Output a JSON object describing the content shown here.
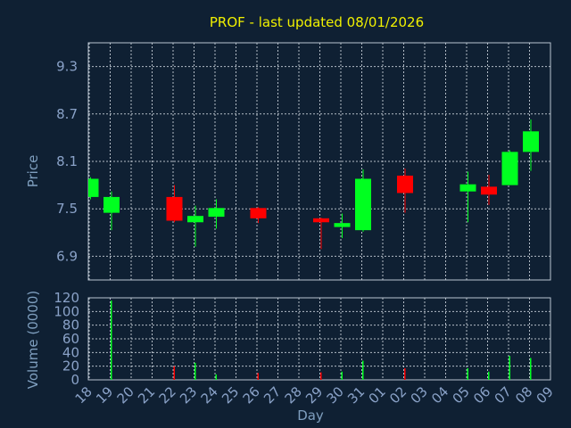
{
  "chart_data": [
    {
      "type": "candlestick",
      "title": "PROF - last updated 08/01/2026",
      "ylabel": "Price",
      "yticks": [
        6.9,
        7.5,
        8.1,
        8.7,
        9.3
      ],
      "ylim": [
        6.6,
        9.6
      ],
      "grid": true,
      "colors": {
        "up": "#00ff20",
        "down": "#ff0000",
        "background": "#0f2033"
      },
      "candles": [
        {
          "day": "18",
          "open": 7.65,
          "close": 7.88,
          "low": 7.62,
          "high": 7.9
        },
        {
          "day": "19",
          "open": 7.45,
          "close": 7.65,
          "low": 7.23,
          "high": 7.72
        },
        {
          "day": "22",
          "open": 7.65,
          "close": 7.35,
          "low": 7.33,
          "high": 7.8
        },
        {
          "day": "23",
          "open": 7.33,
          "close": 7.41,
          "low": 7.02,
          "high": 7.54
        },
        {
          "day": "24",
          "open": 7.4,
          "close": 7.51,
          "low": 7.25,
          "high": 7.62
        },
        {
          "day": "26",
          "open": 7.51,
          "close": 7.38,
          "low": 7.32,
          "high": 7.52
        },
        {
          "day": "29",
          "open": 7.38,
          "close": 7.33,
          "low": 6.99,
          "high": 7.39
        },
        {
          "day": "30",
          "open": 7.27,
          "close": 7.32,
          "low": 7.13,
          "high": 7.44
        },
        {
          "day": "31",
          "open": 7.23,
          "close": 7.88,
          "low": 7.21,
          "high": 8.0
        },
        {
          "day": "02",
          "open": 7.92,
          "close": 7.7,
          "low": 7.45,
          "high": 8.01
        },
        {
          "day": "05",
          "open": 7.72,
          "close": 7.81,
          "low": 7.33,
          "high": 7.97
        },
        {
          "day": "06",
          "open": 7.78,
          "close": 7.68,
          "low": 7.55,
          "high": 7.93
        },
        {
          "day": "07",
          "open": 7.8,
          "close": 8.22,
          "low": 7.82,
          "high": 8.24
        },
        {
          "day": "08",
          "open": 8.22,
          "close": 8.48,
          "low": 7.98,
          "high": 8.63
        }
      ]
    },
    {
      "type": "bar",
      "ylabel": "Volume (0000)",
      "xlabel": "Day",
      "yticks": [
        0,
        20,
        40,
        60,
        80,
        100,
        120
      ],
      "ylim": [
        0,
        120
      ],
      "categories": [
        "18",
        "19",
        "20",
        "21",
        "22",
        "23",
        "24",
        "25",
        "26",
        "27",
        "28",
        "29",
        "30",
        "31",
        "01",
        "02",
        "03",
        "04",
        "05",
        "06",
        "07",
        "08",
        "09"
      ],
      "values": [
        0,
        116,
        0,
        0,
        20,
        25,
        8,
        0,
        10,
        0,
        0,
        11,
        12,
        28,
        0,
        17,
        0,
        0,
        17,
        12,
        35,
        32,
        0
      ],
      "bar_colors": [
        "#00ff20",
        "#00ff20",
        "#00ff20",
        "#00ff20",
        "#ff0000",
        "#00ff20",
        "#00ff20",
        "#00ff20",
        "#ff0000",
        "#00ff20",
        "#00ff20",
        "#ff0000",
        "#00ff20",
        "#00ff20",
        "#00ff20",
        "#ff0000",
        "#00ff20",
        "#00ff20",
        "#00ff20",
        "#00ff20",
        "#00ff20",
        "#00ff20",
        "#00ff20"
      ]
    }
  ]
}
